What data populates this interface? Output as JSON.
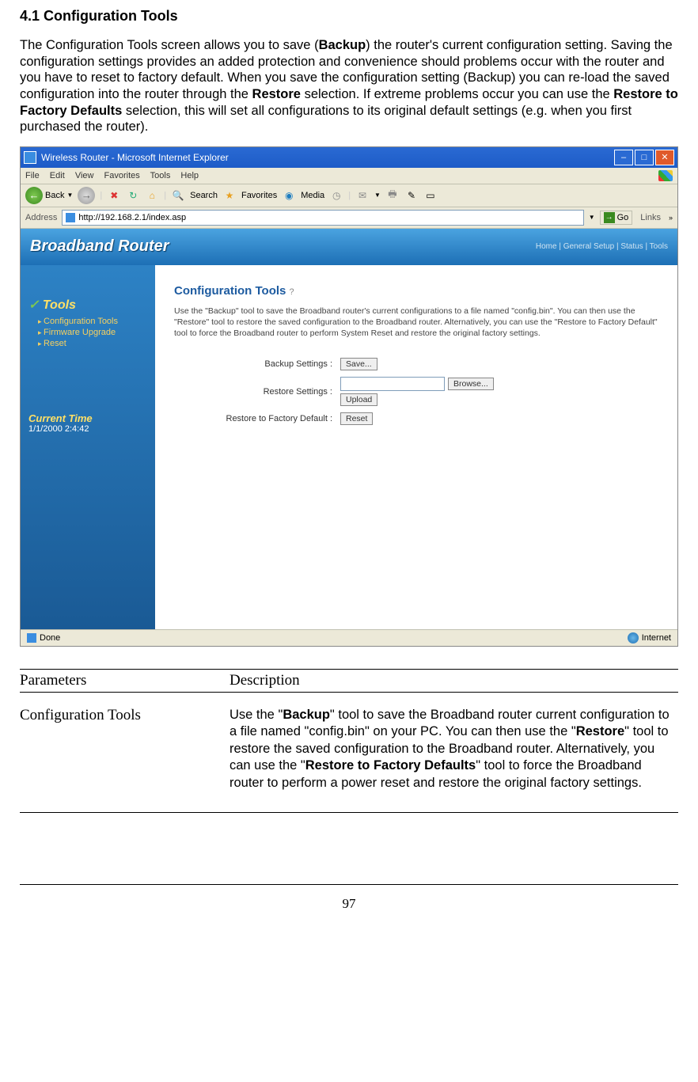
{
  "document": {
    "section_heading": "4.1 Configuration Tools",
    "intro_html": "The Configuration Tools screen allows you to save (<b>Backup</b>) the router's current configuration setting. Saving the configuration settings provides an added protection and convenience should problems occur with the router and you have to reset to factory default. When you save the configuration setting (Backup) you can re-load the saved configuration into the router through the <b>Restore</b> selection. If extreme problems occur you can use the <b>Restore to Factory Defaults</b> selection, this will set all configurations to its original default settings (e.g. when you first purchased the router).",
    "page_number": "97"
  },
  "browser": {
    "window_title": "Wireless Router - Microsoft Internet Explorer",
    "menu_items": [
      "File",
      "Edit",
      "View",
      "Favorites",
      "Tools",
      "Help"
    ],
    "toolbar": {
      "back": "Back",
      "search": "Search",
      "favorites": "Favorites",
      "media": "Media"
    },
    "address_label": "Address",
    "address_value": "http://192.168.2.1/index.asp",
    "go_label": "Go",
    "links_label": "Links",
    "status_done": "Done",
    "status_zone": "Internet"
  },
  "router": {
    "title": "Broadband Router",
    "top_nav": "Home | General Setup | Status | Tools",
    "sidebar": {
      "heading": "Tools",
      "items": [
        "Configuration Tools",
        "Firmware Upgrade",
        "Reset"
      ],
      "current_time_label": "Current Time",
      "current_time_value": "1/1/2000 2:4:42"
    },
    "panel": {
      "title": "Configuration Tools",
      "help_mark": "?",
      "description": "Use the \"Backup\" tool to save the Broadband router's current configurations to a file named \"config.bin\". You can then use the \"Restore\" tool to restore the saved configuration to the Broadband router. Alternatively, you can use the \"Restore to Factory Default\" tool to force the Broadband router to perform System Reset and restore the original factory settings.",
      "rows": {
        "backup_label": "Backup Settings :",
        "backup_button": "Save...",
        "restore_label": "Restore Settings :",
        "restore_browse": "Browse...",
        "restore_upload": "Upload",
        "factory_label": "Restore to Factory Default :",
        "factory_button": "Reset"
      }
    }
  },
  "params_table": {
    "header_col1": "Parameters",
    "header_col2": "Description",
    "row1_col1": "Configuration Tools",
    "row1_col2_html": "Use the \"<b>Backup</b>\" tool to save the Broadband router current configuration to a file named \"config.bin\" on your PC. You can then use the \"<b>Restore</b>\" tool to restore the saved configuration to the Broadband router. Alternatively, you can use the \"<b>Restore to Factory Defaults</b>\" tool to force the Broadband router to perform a power reset and restore the original factory settings."
  }
}
